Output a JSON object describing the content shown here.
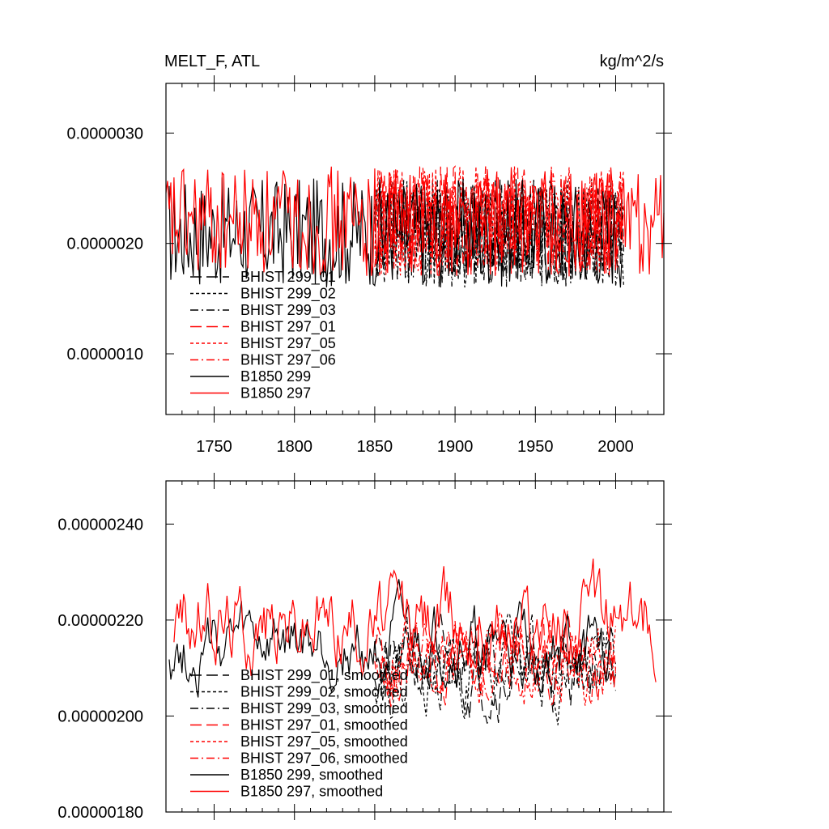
{
  "chart_data": [
    {
      "type": "line",
      "title": "MELT_F, ATL",
      "units": "kg/m^2/s",
      "xlim": [
        1720,
        2030
      ],
      "ylim": [
        4.5e-07,
        3.45e-06
      ],
      "x_ticks": [
        1750,
        1800,
        1850,
        1900,
        1950,
        2000
      ],
      "x_tick_labels": [
        "1750",
        "1800",
        "1850",
        "1900",
        "1950",
        "2000"
      ],
      "y_ticks": [
        1e-06,
        2e-06,
        3e-06
      ],
      "y_tick_labels": [
        "0.0000010",
        "0.0000020",
        "0.0000030"
      ],
      "legend_position": "bottom-left",
      "series": [
        {
          "name": "BHIST 299_01",
          "color": "#000000",
          "dash": "long-dash",
          "x_start": 1850,
          "x_end": 2005,
          "mean": 2.1e-06,
          "amp": 5e-07,
          "seed": 11
        },
        {
          "name": "BHIST 299_02",
          "color": "#000000",
          "dash": "short-dash",
          "x_start": 1850,
          "x_end": 2005,
          "mean": 2.1e-06,
          "amp": 5e-07,
          "seed": 12
        },
        {
          "name": "BHIST 299_03",
          "color": "#000000",
          "dash": "dash-dot",
          "x_start": 1850,
          "x_end": 2005,
          "mean": 2.1e-06,
          "amp": 5e-07,
          "seed": 13
        },
        {
          "name": "BHIST 297_01",
          "color": "#ff0000",
          "dash": "long-dash",
          "x_start": 1850,
          "x_end": 2005,
          "mean": 2.2e-06,
          "amp": 5e-07,
          "seed": 14
        },
        {
          "name": "BHIST 297_05",
          "color": "#ff0000",
          "dash": "short-dash",
          "x_start": 1850,
          "x_end": 2005,
          "mean": 2.2e-06,
          "amp": 5e-07,
          "seed": 15
        },
        {
          "name": "BHIST 297_06",
          "color": "#ff0000",
          "dash": "dash-dot",
          "x_start": 1850,
          "x_end": 2005,
          "mean": 2.2e-06,
          "amp": 5e-07,
          "seed": 16
        },
        {
          "name": "B1850 299",
          "color": "#000000",
          "dash": "solid",
          "x_start": 1722,
          "x_end": 2005,
          "mean": 2.1e-06,
          "amp": 5e-07,
          "seed": 17
        },
        {
          "name": "B1850 297",
          "color": "#ff0000",
          "dash": "solid",
          "x_start": 1720,
          "x_end": 2030,
          "mean": 2.2e-06,
          "amp": 5e-07,
          "seed": 18
        }
      ]
    },
    {
      "type": "line",
      "title": "",
      "units": "",
      "xlim": [
        1720,
        2030
      ],
      "ylim": [
        1.8e-06,
        2.49e-06
      ],
      "x_ticks": [
        1750,
        1800,
        1850,
        1900,
        1950,
        2000
      ],
      "x_tick_labels": [
        "",
        "",
        "",
        "",
        "",
        ""
      ],
      "y_ticks": [
        1.8e-06,
        2e-06,
        2.2e-06,
        2.4e-06
      ],
      "y_tick_labels": [
        "0.00000180",
        "0.00000200",
        "0.00000220",
        "0.00000240"
      ],
      "legend_position": "bottom-left",
      "series": [
        {
          "name": "BHIST 299_01, smoothed",
          "color": "#000000",
          "dash": "long-dash",
          "x_start": 1850,
          "x_end": 2000,
          "mean": 2.1e-06,
          "amp": 1e-07,
          "seed": 21
        },
        {
          "name": "BHIST 299_02, smoothed",
          "color": "#000000",
          "dash": "short-dash",
          "x_start": 1850,
          "x_end": 2000,
          "mean": 2.1e-06,
          "amp": 1e-07,
          "seed": 22
        },
        {
          "name": "BHIST 299_03, smoothed",
          "color": "#000000",
          "dash": "dash-dot",
          "x_start": 1850,
          "x_end": 2000,
          "mean": 2.1e-06,
          "amp": 1e-07,
          "seed": 23
        },
        {
          "name": "BHIST 297_01, smoothed",
          "color": "#ff0000",
          "dash": "long-dash",
          "x_start": 1850,
          "x_end": 2000,
          "mean": 2.12e-06,
          "amp": 1e-07,
          "seed": 24
        },
        {
          "name": "BHIST 297_05, smoothed",
          "color": "#ff0000",
          "dash": "short-dash",
          "x_start": 1850,
          "x_end": 2000,
          "mean": 2.12e-06,
          "amp": 1e-07,
          "seed": 25
        },
        {
          "name": "BHIST 297_06, smoothed",
          "color": "#ff0000",
          "dash": "dash-dot",
          "x_start": 1850,
          "x_end": 2000,
          "mean": 2.12e-06,
          "amp": 1e-07,
          "seed": 26
        },
        {
          "name": "B1850 299, smoothed",
          "color": "#000000",
          "dash": "solid",
          "x_start": 1722,
          "x_end": 1998,
          "mean": 2.14e-06,
          "amp": 1e-07,
          "seed": 27
        },
        {
          "name": "B1850 297, smoothed",
          "color": "#ff0000",
          "dash": "solid",
          "x_start": 1725,
          "x_end": 2025,
          "mean": 2.2e-06,
          "amp": 1.2e-07,
          "seed": 28
        }
      ]
    }
  ]
}
